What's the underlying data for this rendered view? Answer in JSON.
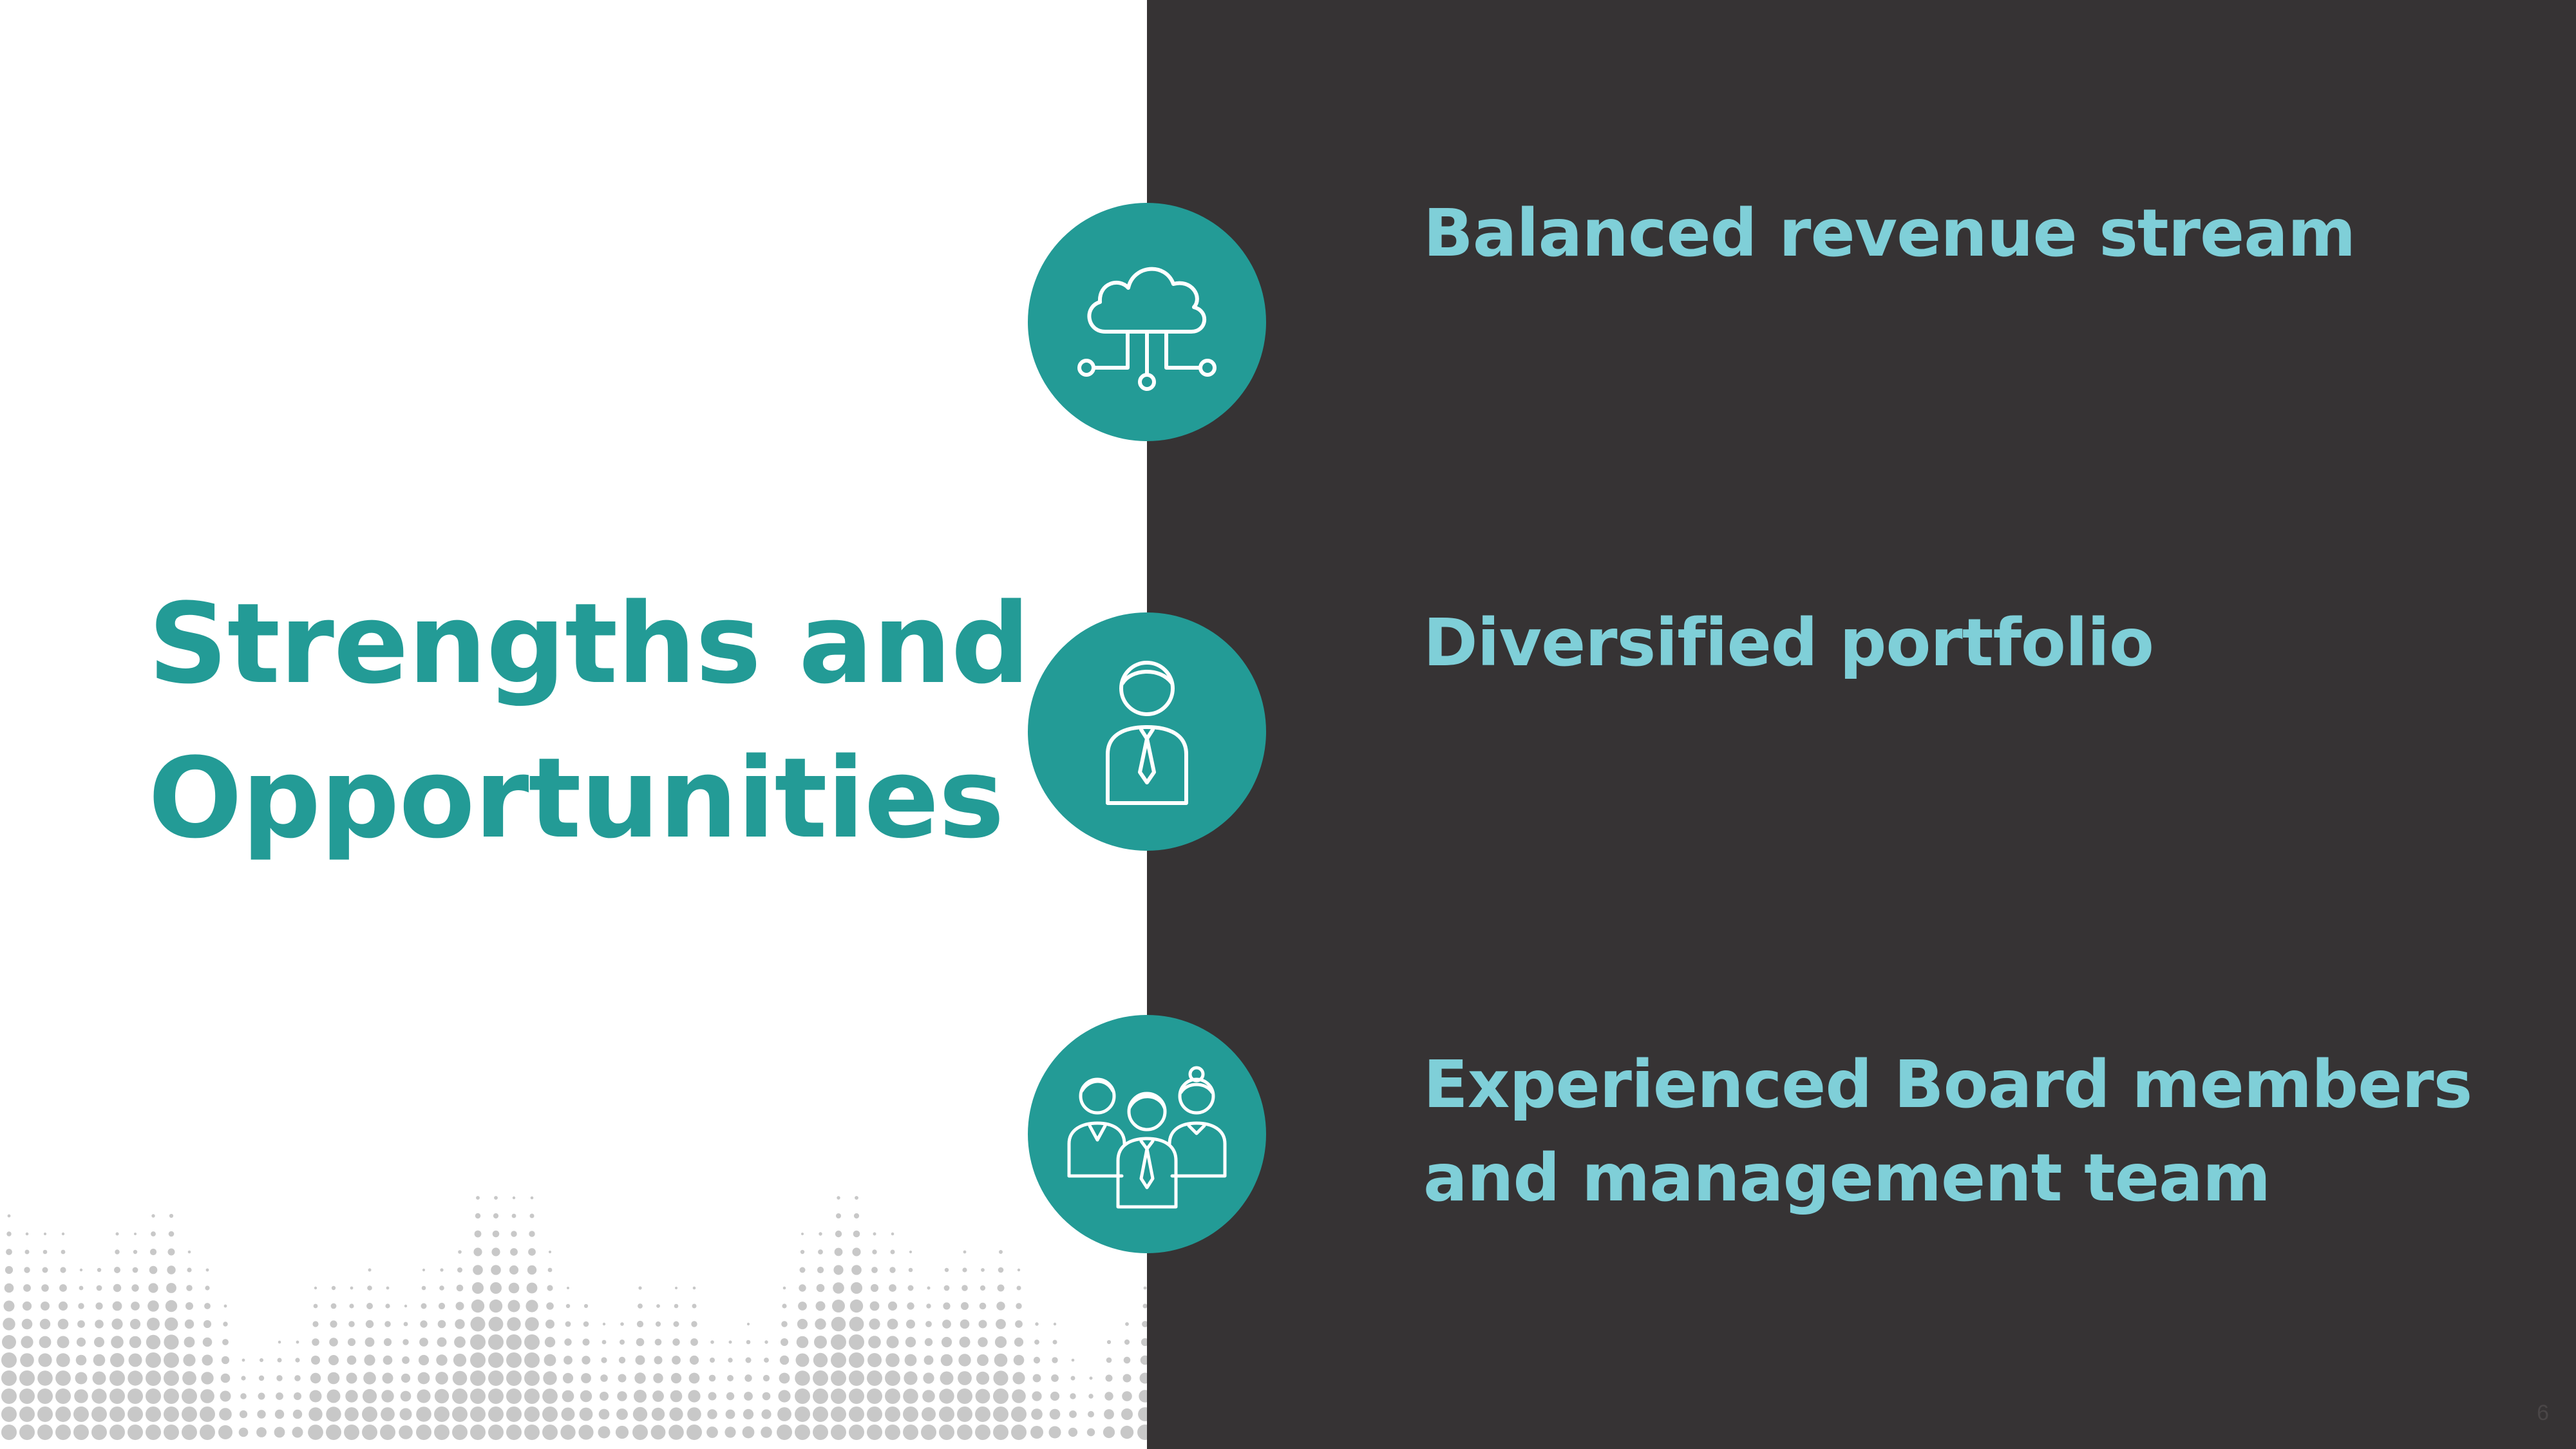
{
  "title": {
    "line1": "Strengths and",
    "line2": "Opportunities"
  },
  "points": [
    {
      "lines": [
        "Balanced revenue stream"
      ],
      "icon": "cloud-network-icon"
    },
    {
      "lines": [
        "Diversified portfolio"
      ],
      "icon": "businessperson-icon"
    },
    {
      "lines": [
        "Experienced Board members",
        "and management team"
      ],
      "icon": "team-people-icon"
    }
  ],
  "page_number": "6",
  "colors": {
    "accent_teal": "#239b96",
    "point_text": "#7fcfd8",
    "dark_panel": "#363334",
    "background": "#ffffff",
    "dots": "#c8c8c8"
  }
}
